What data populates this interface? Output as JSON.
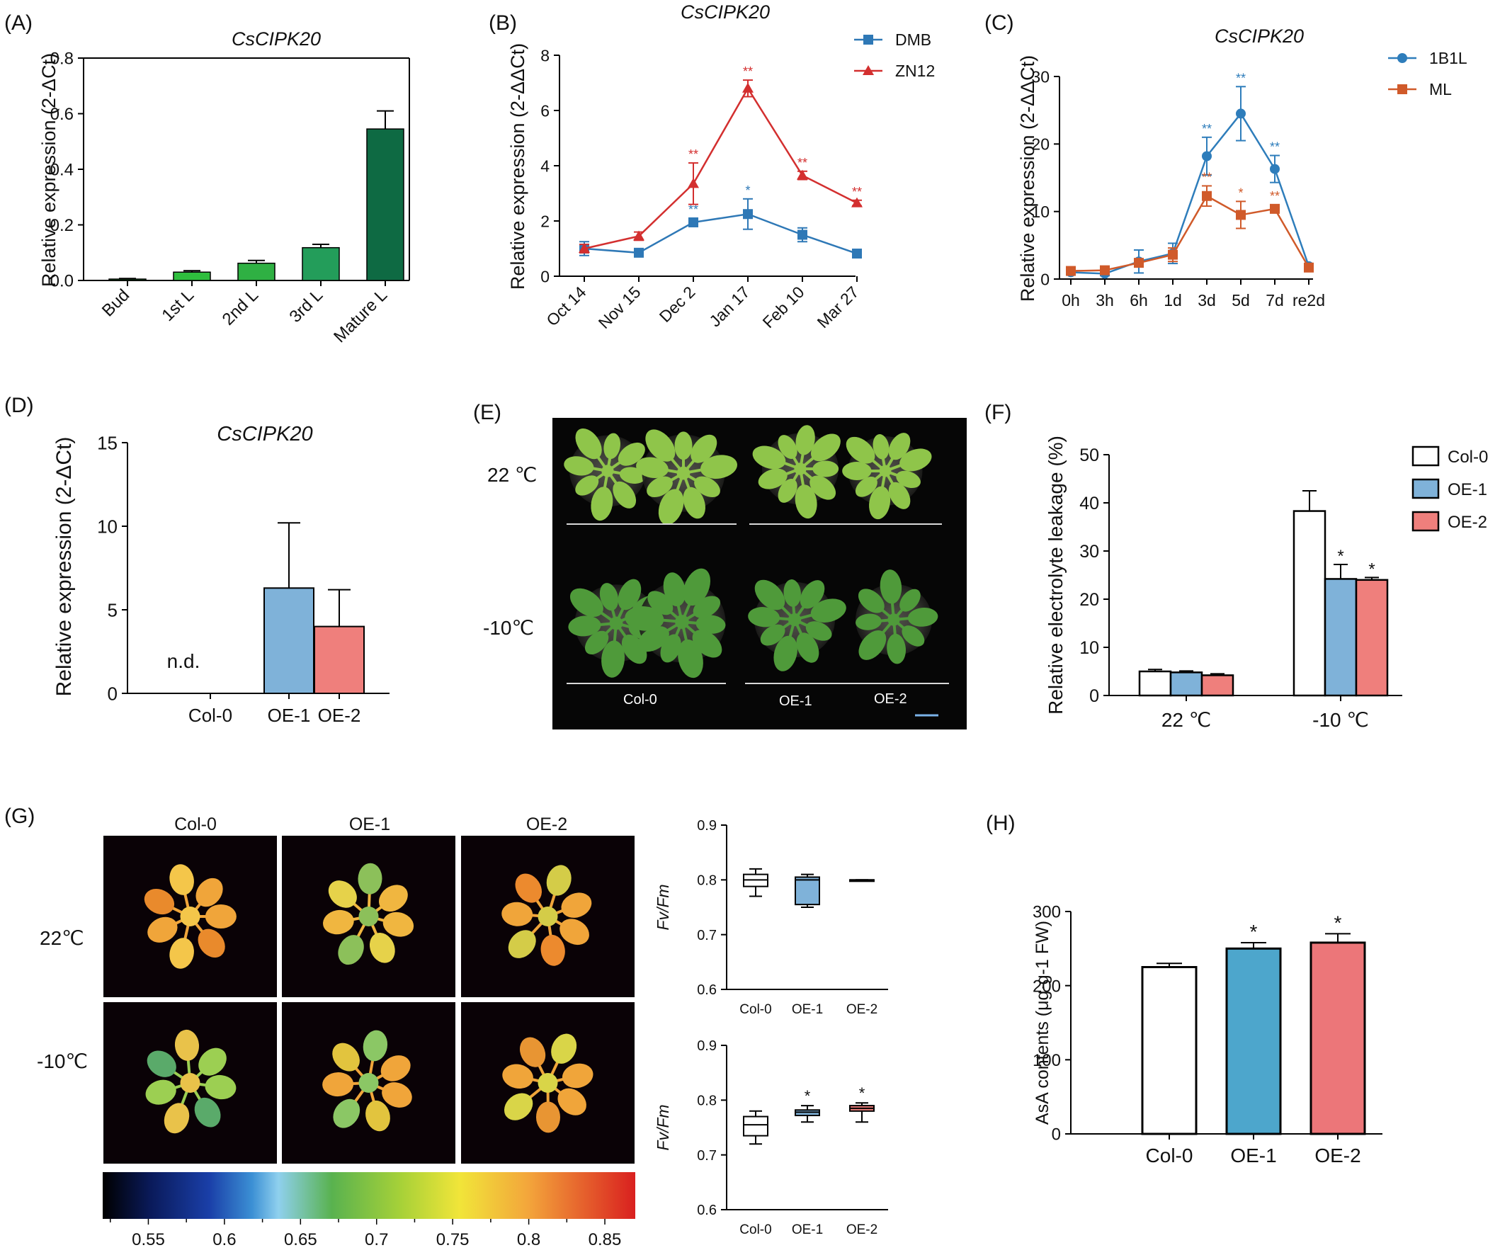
{
  "panel_letters": {
    "A": "(A)",
    "B": "(B)",
    "C": "(C)",
    "D": "(D)",
    "E": "(E)",
    "F": "(F)",
    "G": "(G)",
    "H": "(H)"
  },
  "colors": {
    "greens": [
      "#1b7a2c",
      "#2fbe3e",
      "#2fb043",
      "#239d5a",
      "#0e6a43"
    ],
    "dmb": "#2e78b6",
    "zn12": "#d32f2f",
    "l1b1l": "#2e7dbb",
    "ml": "#d05a2a",
    "oe1": "#7fb2d9",
    "oe2": "#ef7f7c",
    "col0": "#ffffff",
    "h_oe1": "#4da6cc",
    "h_oe2": "#ec7679"
  },
  "chart_data": [
    {
      "panel": "A",
      "type": "bar",
      "title": "CsCIPK20",
      "ylabel": "Relative expression (2-ΔCt)",
      "categories": [
        "Bud",
        "1st L",
        "2nd L",
        "3rd L",
        "Mature L"
      ],
      "values": [
        0.005,
        0.03,
        0.062,
        0.118,
        0.545
      ],
      "errors": [
        0.002,
        0.005,
        0.01,
        0.012,
        0.065
      ],
      "ylim": [
        0,
        0.8
      ],
      "yticks": [
        "0.0",
        "0.2",
        "0.4",
        "0.6",
        "0.8"
      ]
    },
    {
      "panel": "B",
      "type": "line",
      "title": "CsCIPK20",
      "ylabel": "Relative expression (2-ΔΔCt)",
      "categories": [
        "Oct 14",
        "Nov 15",
        "Dec 2",
        "Jan 17",
        "Feb 10",
        "Mar 27"
      ],
      "ylim": [
        0,
        8
      ],
      "yticks": [
        "0",
        "2",
        "4",
        "6",
        "8"
      ],
      "series": [
        {
          "name": "DMB",
          "values": [
            1.0,
            0.85,
            1.95,
            2.25,
            1.5,
            0.82
          ],
          "errors": [
            0.25,
            0.1,
            0.15,
            0.55,
            0.25,
            0.08
          ],
          "sig": [
            "",
            "",
            "**",
            "*",
            "",
            ""
          ]
        },
        {
          "name": "ZN12",
          "values": [
            1.0,
            1.45,
            3.35,
            6.8,
            3.65,
            2.65
          ],
          "errors": [
            0.15,
            0.15,
            0.75,
            0.3,
            0.15,
            0.1
          ],
          "sig": [
            "",
            "",
            "**",
            "**",
            "**",
            "**"
          ]
        }
      ]
    },
    {
      "panel": "C",
      "type": "line",
      "title": "CsCIPK20",
      "ylabel": "Relative expression (2-ΔΔCt)",
      "categories": [
        "0h",
        "3h",
        "6h",
        "1d",
        "3d",
        "5d",
        "7d",
        "re2d"
      ],
      "ylim": [
        0,
        30
      ],
      "yticks": [
        "0",
        "10",
        "20",
        "30"
      ],
      "series": [
        {
          "name": "1B1L",
          "values": [
            1.0,
            0.8,
            2.6,
            3.8,
            18.2,
            24.5,
            16.3,
            1.9
          ],
          "errors": [
            0.3,
            0.3,
            1.7,
            1.5,
            2.8,
            4.0,
            2.0,
            0.3
          ],
          "sig": [
            "",
            "",
            "",
            "",
            "**",
            "**",
            "**",
            ""
          ]
        },
        {
          "name": "ML",
          "values": [
            1.2,
            1.3,
            2.4,
            3.6,
            12.3,
            9.5,
            10.4,
            1.7
          ],
          "errors": [
            0.2,
            0.2,
            0.6,
            1.0,
            1.5,
            2.0,
            0.6,
            0.2
          ],
          "sig": [
            "",
            "",
            "",
            "",
            "**",
            "*",
            "**",
            ""
          ]
        }
      ]
    },
    {
      "panel": "D",
      "type": "bar",
      "title": "CsCIPK20",
      "ylabel": "Relative expression (2-ΔCt)",
      "categories": [
        "Col-0",
        "OE-1",
        "OE-2"
      ],
      "values": [
        0,
        6.3,
        4.0
      ],
      "errors": [
        0,
        3.9,
        2.2
      ],
      "annotation": "n.d.",
      "ylim": [
        0,
        15
      ],
      "yticks": [
        "0",
        "5",
        "10",
        "15"
      ]
    },
    {
      "panel": "F",
      "type": "bar",
      "ylabel": "Relative electrolyte leakage (%)",
      "categories": [
        "22 ℃",
        "-10 ℃"
      ],
      "ylim": [
        0,
        50
      ],
      "yticks": [
        "0",
        "10",
        "20",
        "30",
        "40",
        "50"
      ],
      "series": [
        {
          "name": "Col-0",
          "values": [
            5.0,
            38.3
          ],
          "errors": [
            0.4,
            4.2
          ],
          "sig": [
            "",
            ""
          ]
        },
        {
          "name": "OE-1",
          "values": [
            4.8,
            24.2
          ],
          "errors": [
            0.3,
            3.0
          ],
          "sig": [
            "",
            "*"
          ]
        },
        {
          "name": "OE-2",
          "values": [
            4.2,
            24.0
          ],
          "errors": [
            0.3,
            0.5
          ],
          "sig": [
            "",
            "*"
          ]
        }
      ]
    },
    {
      "panel": "G-top",
      "type": "box",
      "ylabel": "Fv/Fm",
      "categories": [
        "Col-0",
        "OE-1",
        "OE-2"
      ],
      "ylim": [
        0.6,
        0.9
      ],
      "yticks": [
        "0.6",
        "0.7",
        "0.8",
        "0.9"
      ],
      "boxes": [
        {
          "min": 0.77,
          "q1": 0.788,
          "median": 0.8,
          "q3": 0.81,
          "max": 0.82,
          "sig": ""
        },
        {
          "min": 0.75,
          "q1": 0.755,
          "median": 0.8,
          "q3": 0.805,
          "max": 0.81,
          "sig": ""
        },
        {
          "min": 0.8,
          "q1": 0.8,
          "median": 0.8,
          "q3": 0.8,
          "max": 0.8,
          "sig": ""
        }
      ]
    },
    {
      "panel": "G-bottom",
      "type": "box",
      "ylabel": "Fv/Fm",
      "categories": [
        "Col-0",
        "OE-1",
        "OE-2"
      ],
      "ylim": [
        0.6,
        0.9
      ],
      "yticks": [
        "0.6",
        "0.7",
        "0.8",
        "0.9"
      ],
      "boxes": [
        {
          "min": 0.72,
          "q1": 0.735,
          "median": 0.755,
          "q3": 0.77,
          "max": 0.78,
          "sig": ""
        },
        {
          "min": 0.76,
          "q1": 0.772,
          "median": 0.778,
          "q3": 0.782,
          "max": 0.79,
          "sig": "*"
        },
        {
          "min": 0.76,
          "q1": 0.78,
          "median": 0.785,
          "q3": 0.79,
          "max": 0.795,
          "sig": "*"
        }
      ]
    },
    {
      "panel": "H",
      "type": "bar",
      "ylabel": "AsA contents (μg·g-1 FW)",
      "categories": [
        "Col-0",
        "OE-1",
        "OE-2"
      ],
      "values": [
        225,
        250,
        258
      ],
      "errors": [
        5,
        8,
        12
      ],
      "sig": [
        "",
        "*",
        "*"
      ],
      "ylim": [
        0,
        300
      ],
      "yticks": [
        "0",
        "100",
        "200",
        "300"
      ]
    }
  ],
  "panel_E": {
    "row_labels": [
      "22 ℃",
      "-10℃"
    ],
    "genotype_labels": [
      "Col-0",
      "OE-1",
      "OE-2"
    ]
  },
  "panel_G": {
    "column_labels": [
      "Col-0",
      "OE-1",
      "OE-2"
    ],
    "row_labels": [
      "22℃",
      "-10℃"
    ],
    "colorbar_ticks": [
      "0.55",
      "0.6",
      "0.65",
      "0.7",
      "0.75",
      "0.8",
      "0.85"
    ]
  }
}
